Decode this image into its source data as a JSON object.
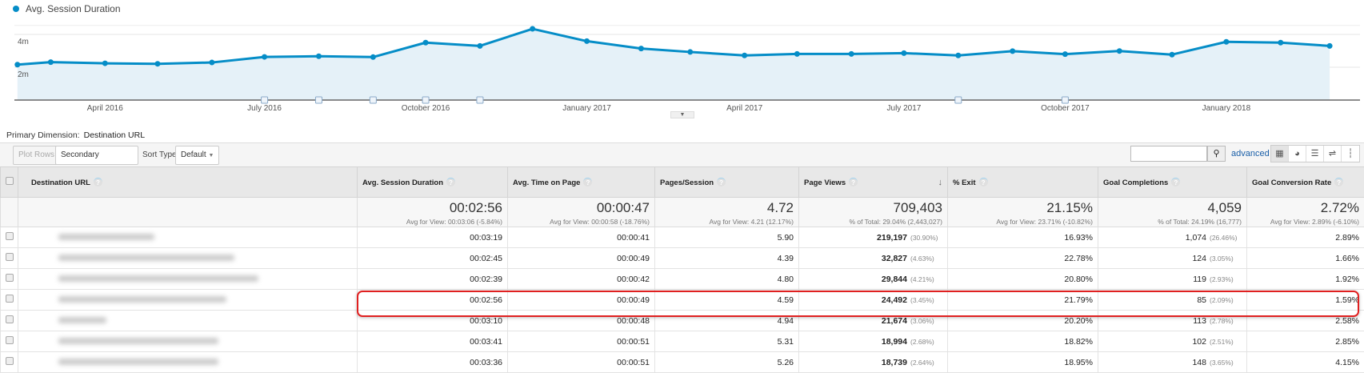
{
  "colors": {
    "series": "#058dc7",
    "area": "#e5f1f8",
    "highlight": "#e02020"
  },
  "chart_data": {
    "type": "area",
    "legend": "Avg. Session Duration",
    "legend_position": "top-left",
    "y_unit": "minutes",
    "ylim": [
      0,
      4.5
    ],
    "y_ticks": [
      {
        "value": 2,
        "label": "2m"
      },
      {
        "value": 4,
        "label": "4m"
      }
    ],
    "grid": true,
    "x_ticks": [
      {
        "date": "2016-04-01",
        "label": "April 2016"
      },
      {
        "date": "2016-07-01",
        "label": "July 2016"
      },
      {
        "date": "2016-10-01",
        "label": "October 2016"
      },
      {
        "date": "2017-01-01",
        "label": "January 2017"
      },
      {
        "date": "2017-04-01",
        "label": "April 2017"
      },
      {
        "date": "2017-07-01",
        "label": "July 2017"
      },
      {
        "date": "2017-10-01",
        "label": "October 2017"
      },
      {
        "date": "2018-01-01",
        "label": "January 2018"
      }
    ],
    "x": [
      "2016-02-11",
      "2016-03-01",
      "2016-04-01",
      "2016-05-01",
      "2016-06-01",
      "2016-07-01",
      "2016-08-01",
      "2016-09-01",
      "2016-10-01",
      "2016-11-01",
      "2016-12-01",
      "2017-01-01",
      "2017-02-01",
      "2017-03-01",
      "2017-04-01",
      "2017-05-01",
      "2017-06-01",
      "2017-07-01",
      "2017-08-01",
      "2017-09-01",
      "2017-10-01",
      "2017-11-01",
      "2017-12-01",
      "2018-01-01",
      "2018-02-01",
      "2018-03-01"
    ],
    "series": [
      {
        "name": "Avg. Session Duration",
        "values": [
          2.16,
          2.31,
          2.24,
          2.21,
          2.29,
          2.63,
          2.67,
          2.62,
          3.5,
          3.3,
          4.34,
          3.59,
          3.14,
          2.93,
          2.72,
          2.81,
          2.81,
          2.86,
          2.72,
          2.98,
          2.8,
          2.99,
          2.77,
          3.55,
          3.5,
          3.3
        ]
      }
    ],
    "annotation_dates": [
      "2016-07-01",
      "2016-08-01",
      "2016-09-01",
      "2016-10-01",
      "2016-11-01",
      "2017-08-01",
      "2017-10-01"
    ]
  },
  "primary_dimension": {
    "label": "Primary Dimension:",
    "value": "Destination URL"
  },
  "toolbar": {
    "plot_rows": "Plot Rows",
    "secondary_dimension": "Secondary dimension",
    "sort_type_label": "Sort Type:",
    "sort_type_value": "Default",
    "search_value": "",
    "advanced": "advanced"
  },
  "table": {
    "headers": [
      "Destination URL",
      "Avg. Session Duration",
      "Avg. Time on Page",
      "Pages/Session",
      "Page Views",
      "% Exit",
      "Goal Completions",
      "Goal Conversion Rate"
    ],
    "sorted_column": "Page Views",
    "summary": [
      {
        "value": "00:02:56",
        "sub": "Avg for View: 00:03:06 (-5.84%)"
      },
      {
        "value": "00:00:47",
        "sub": "Avg for View: 00:00:58 (-18.76%)"
      },
      {
        "value": "4.72",
        "sub": "Avg for View: 4.21 (12.17%)"
      },
      {
        "value": "709,403",
        "sub": "% of Total: 29.04% (2,443,027)"
      },
      {
        "value": "21.15%",
        "sub": "Avg for View: 23.71% (-10.82%)"
      },
      {
        "value": "4,059",
        "sub": "% of Total: 24.19% (16,777)"
      },
      {
        "value": "2.72%",
        "sub": "Avg for View: 2.89% (-6.10%)"
      }
    ],
    "rows": [
      {
        "asd": "00:03:19",
        "atp": "00:00:41",
        "pps": "5.90",
        "pv": "219,197",
        "pv_pct": "(30.90%)",
        "exit": "16.93%",
        "gc": "1,074",
        "gc_pct": "(26.46%)",
        "gcr": "2.89%"
      },
      {
        "asd": "00:02:45",
        "atp": "00:00:49",
        "pps": "4.39",
        "pv": "32,827",
        "pv_pct": "(4.63%)",
        "exit": "22.78%",
        "gc": "124",
        "gc_pct": "(3.05%)",
        "gcr": "1.66%"
      },
      {
        "asd": "00:02:39",
        "atp": "00:00:42",
        "pps": "4.80",
        "pv": "29,844",
        "pv_pct": "(4.21%)",
        "exit": "20.80%",
        "gc": "119",
        "gc_pct": "(2.93%)",
        "gcr": "1.92%"
      },
      {
        "asd": "00:02:56",
        "atp": "00:00:49",
        "pps": "4.59",
        "pv": "24,492",
        "pv_pct": "(3.45%)",
        "exit": "21.79%",
        "gc": "85",
        "gc_pct": "(2.09%)",
        "gcr": "1.59%",
        "highlighted": true
      },
      {
        "asd": "00:03:10",
        "atp": "00:00:48",
        "pps": "4.94",
        "pv": "21,674",
        "pv_pct": "(3.06%)",
        "exit": "20.20%",
        "gc": "113",
        "gc_pct": "(2.78%)",
        "gcr": "2.58%"
      },
      {
        "asd": "00:03:41",
        "atp": "00:00:51",
        "pps": "5.31",
        "pv": "18,994",
        "pv_pct": "(2.68%)",
        "exit": "18.82%",
        "gc": "102",
        "gc_pct": "(2.51%)",
        "gcr": "2.85%"
      },
      {
        "asd": "00:03:36",
        "atp": "00:00:51",
        "pps": "5.26",
        "pv": "18,739",
        "pv_pct": "(2.64%)",
        "exit": "18.95%",
        "gc": "148",
        "gc_pct": "(3.65%)",
        "gcr": "4.15%"
      }
    ]
  }
}
